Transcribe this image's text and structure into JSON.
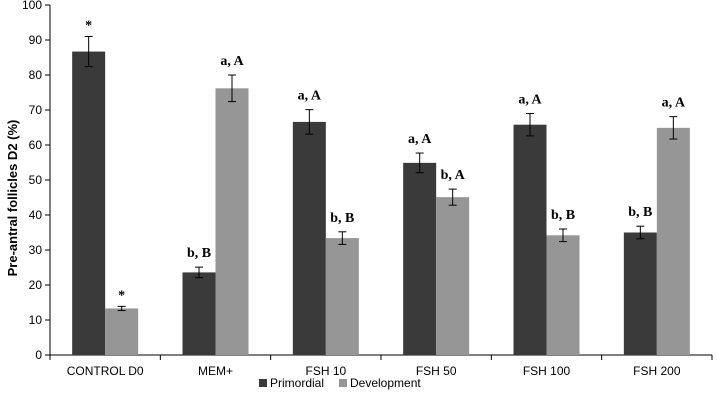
{
  "chart_data": {
    "type": "bar",
    "ylabel": "Pre-antral follicles D2 (%)",
    "xlabel": "",
    "ylim": [
      0,
      100
    ],
    "yticks": [
      0,
      10,
      20,
      30,
      40,
      50,
      60,
      70,
      80,
      90,
      100
    ],
    "grid": false,
    "legend_position": "bottom",
    "categories": [
      "CONTROL D0",
      "MEM+",
      "FSH 10",
      "FSH 50",
      "FSH 100",
      "FSH 200"
    ],
    "series": [
      {
        "name": "Primordial",
        "color": "#3a3a3a",
        "values": [
          86.7,
          23.6,
          66.6,
          54.9,
          65.8,
          35.0
        ],
        "errors": [
          4.3,
          1.5,
          3.5,
          2.8,
          3.2,
          1.8
        ],
        "labels": [
          "*",
          "b, B",
          "a, A",
          "a, A",
          "a, A",
          "b, B"
        ]
      },
      {
        "name": "Development",
        "color": "#969696",
        "values": [
          13.3,
          76.2,
          33.4,
          45.1,
          34.2,
          64.9
        ],
        "errors": [
          0.6,
          3.8,
          1.8,
          2.3,
          1.8,
          3.2
        ],
        "labels": [
          "*",
          "a, A",
          "b, B",
          "b, A",
          "b, B",
          "a, A"
        ]
      }
    ]
  }
}
